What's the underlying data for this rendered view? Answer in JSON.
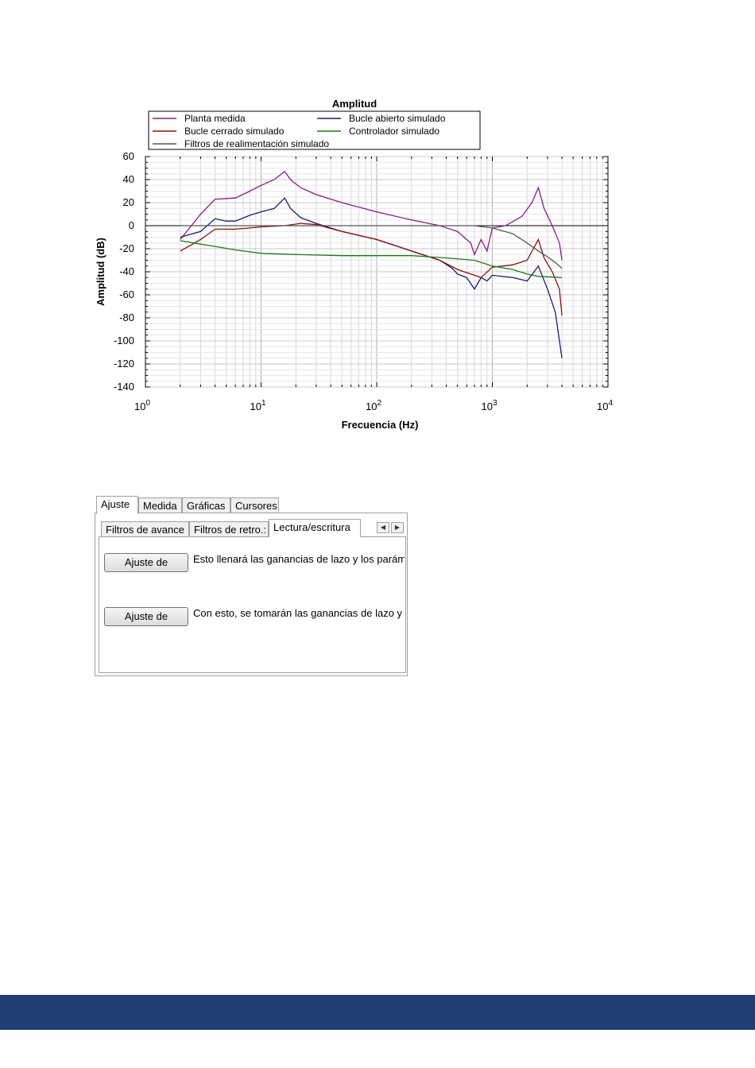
{
  "chart_data": {
    "type": "line",
    "title": "Amplitud",
    "xlabel": "Frecuencia (Hz)",
    "ylabel": "Amplitud (dB)",
    "xscale": "log",
    "xlim": [
      1,
      10000
    ],
    "ylim": [
      -140,
      60
    ],
    "yticks": [
      60,
      40,
      20,
      0,
      -20,
      -40,
      -60,
      -80,
      -100,
      -120,
      -140
    ],
    "xticks": [
      {
        "base": "10",
        "exp": "0"
      },
      {
        "base": "10",
        "exp": "1"
      },
      {
        "base": "10",
        "exp": "2"
      },
      {
        "base": "10",
        "exp": "3"
      },
      {
        "base": "10",
        "exp": "4"
      }
    ],
    "grid": true,
    "legend_position": "top",
    "series": [
      {
        "name": "Planta medida",
        "color": "#8a1a8a",
        "points": [
          [
            2,
            -12
          ],
          [
            3,
            10
          ],
          [
            4,
            23
          ],
          [
            6,
            24
          ],
          [
            8,
            30
          ],
          [
            10,
            35
          ],
          [
            13,
            40
          ],
          [
            16,
            47
          ],
          [
            18,
            40
          ],
          [
            22,
            33
          ],
          [
            30,
            27
          ],
          [
            50,
            20
          ],
          [
            100,
            12
          ],
          [
            200,
            5
          ],
          [
            350,
            0
          ],
          [
            500,
            -5
          ],
          [
            650,
            -15
          ],
          [
            700,
            -25
          ],
          [
            800,
            -12
          ],
          [
            900,
            -22
          ],
          [
            1000,
            -2
          ],
          [
            1300,
            0
          ],
          [
            1800,
            8
          ],
          [
            2200,
            20
          ],
          [
            2500,
            33
          ],
          [
            2800,
            15
          ],
          [
            3300,
            0
          ],
          [
            3800,
            -15
          ],
          [
            4000,
            -30
          ]
        ]
      },
      {
        "name": "Bucle abierto simulado",
        "color": "#1a1a7a",
        "points": [
          [
            2,
            -10
          ],
          [
            3,
            -5
          ],
          [
            4,
            6
          ],
          [
            5,
            4
          ],
          [
            6,
            4
          ],
          [
            8,
            9
          ],
          [
            10,
            12
          ],
          [
            13,
            15
          ],
          [
            16,
            24
          ],
          [
            18,
            15
          ],
          [
            22,
            7
          ],
          [
            30,
            2
          ],
          [
            50,
            -5
          ],
          [
            100,
            -12
          ],
          [
            200,
            -22
          ],
          [
            350,
            -30
          ],
          [
            450,
            -37
          ],
          [
            500,
            -42
          ],
          [
            600,
            -45
          ],
          [
            700,
            -55
          ],
          [
            800,
            -45
          ],
          [
            900,
            -48
          ],
          [
            1000,
            -43
          ],
          [
            1500,
            -45
          ],
          [
            2000,
            -48
          ],
          [
            2500,
            -35
          ],
          [
            3000,
            -55
          ],
          [
            3500,
            -75
          ],
          [
            4000,
            -115
          ]
        ]
      },
      {
        "name": "Bucle cerrado simulado",
        "color": "#8a1010",
        "points": [
          [
            2,
            -22
          ],
          [
            3,
            -12
          ],
          [
            4,
            -3
          ],
          [
            6,
            -3
          ],
          [
            8,
            -2
          ],
          [
            10,
            -1
          ],
          [
            16,
            0
          ],
          [
            22,
            2
          ],
          [
            30,
            1
          ],
          [
            50,
            -5
          ],
          [
            100,
            -12
          ],
          [
            200,
            -22
          ],
          [
            350,
            -30
          ],
          [
            500,
            -38
          ],
          [
            800,
            -45
          ],
          [
            1000,
            -36
          ],
          [
            1500,
            -34
          ],
          [
            2000,
            -30
          ],
          [
            2500,
            -12
          ],
          [
            2800,
            -28
          ],
          [
            3300,
            -40
          ],
          [
            3800,
            -55
          ],
          [
            4000,
            -78
          ]
        ]
      },
      {
        "name": "Controlador simulado",
        "color": "#1a7a1a",
        "points": [
          [
            2,
            -13
          ],
          [
            3,
            -16
          ],
          [
            4,
            -18
          ],
          [
            6,
            -21
          ],
          [
            10,
            -24
          ],
          [
            20,
            -25
          ],
          [
            50,
            -26
          ],
          [
            100,
            -26
          ],
          [
            200,
            -26
          ],
          [
            400,
            -28
          ],
          [
            700,
            -30
          ],
          [
            1000,
            -35
          ],
          [
            1500,
            -38
          ],
          [
            2000,
            -42
          ],
          [
            2500,
            -44
          ],
          [
            4000,
            -45
          ]
        ]
      },
      {
        "name": "Filtros de realimentación simulado",
        "color": "#555555",
        "points": [
          [
            2,
            0
          ],
          [
            10,
            0
          ],
          [
            50,
            0
          ],
          [
            200,
            0
          ],
          [
            500,
            0
          ],
          [
            700,
            0
          ],
          [
            1000,
            -2
          ],
          [
            1500,
            -7
          ],
          [
            2000,
            -15
          ],
          [
            2500,
            -22
          ],
          [
            3000,
            -27
          ],
          [
            3500,
            -32
          ],
          [
            4000,
            -37
          ]
        ]
      }
    ]
  },
  "tabs": {
    "main": [
      {
        "label": "Ajuste"
      },
      {
        "label": "Medida"
      },
      {
        "label": "Gráficas"
      },
      {
        "label": "Cursores"
      }
    ],
    "sub": [
      {
        "label": "Filtros de avance"
      },
      {
        "label": "Filtros de retro.:"
      },
      {
        "label": "Lectura/escritura"
      }
    ]
  },
  "actions": {
    "button1": "Ajuste de",
    "desc1": "Esto llenará las ganancias de lazo y los paráme",
    "button2": "Ajuste de",
    "desc2": "Con esto, se tomarán las ganancias de lazo y lo"
  },
  "scroll": {
    "left": "◀",
    "right": "▶"
  }
}
